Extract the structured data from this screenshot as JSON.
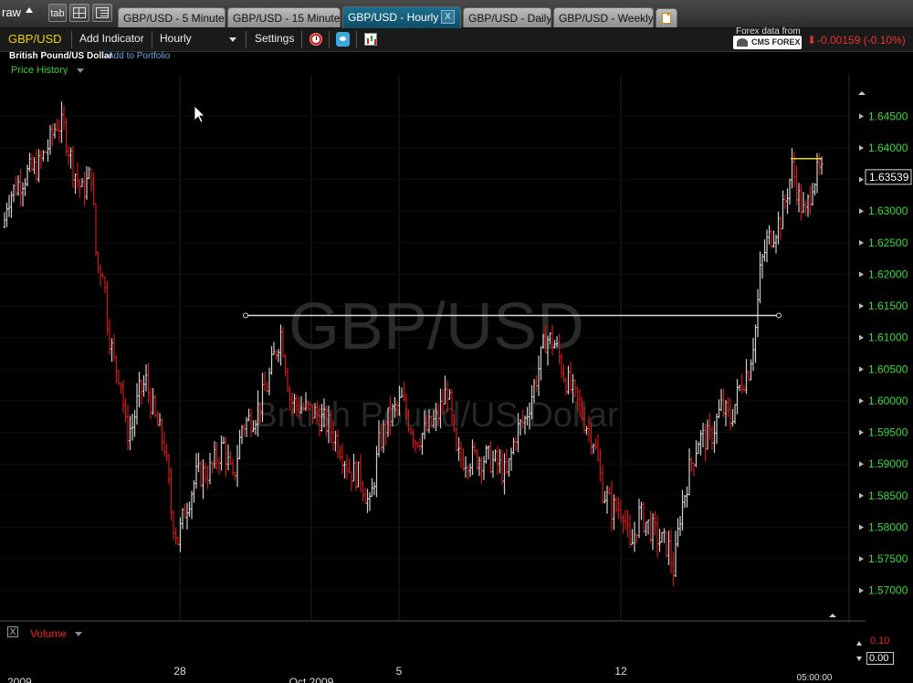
{
  "tabstrip": {
    "workspace_label": "raw",
    "tab_button_label": "tab",
    "tabs": [
      {
        "label": "GBP/USD - 5 Minute"
      },
      {
        "label": "GBP/USD - 15 Minute"
      },
      {
        "label": "GBP/USD - Hourly",
        "active": true
      },
      {
        "label": "GBP/USD - Daily"
      },
      {
        "label": "GBP/USD - Weekly"
      }
    ],
    "close_label": "X"
  },
  "toolbar": {
    "symbol": "GBP/USD",
    "add_indicator": "Add Indicator",
    "interval": "Hourly",
    "settings": "Settings",
    "data_source_label": "Forex data from",
    "data_source_logo": "CMS FOREX",
    "change_arrow": "⬇",
    "change": "-0.00159 (-0.10%)"
  },
  "subheader": {
    "pair_name": "British Pound/US Dollar",
    "add_to_portfolio": "Add to Portfolio",
    "panel_label": "Price History"
  },
  "chart_data": {
    "type": "ohlc",
    "watermark_symbol": "GBP/USD",
    "watermark_name": "British Pound/US Dollar",
    "ylim": [
      1.5675,
      1.6475
    ],
    "y_ticks": [
      "1.64500",
      "1.64000",
      "1.63500",
      "1.63000",
      "1.62500",
      "1.62000",
      "1.61500",
      "1.61000",
      "1.60500",
      "1.60000",
      "1.59500",
      "1.59000",
      "1.58500",
      "1.58000",
      "1.57500",
      "1.57000"
    ],
    "current_price": "1.63539",
    "x_ticks": [
      "2009",
      "28",
      "Oct 2009",
      "5",
      "12",
      "05:00:00"
    ],
    "trendline": {
      "price": 1.6135
    },
    "resistance_line": {
      "price": 1.6383
    },
    "colors": {
      "up": "#cfcfcf",
      "down": "#d01818",
      "grid": "#1f1f1f",
      "axis_text": "#33dd33",
      "trendline": "#d8d8d8",
      "resistance": "#e8e000"
    },
    "path_anchors": [
      [
        0,
        1.623
      ],
      [
        8,
        1.632
      ],
      [
        18,
        1.634
      ],
      [
        30,
        1.636
      ],
      [
        42,
        1.637
      ],
      [
        55,
        1.641
      ],
      [
        62,
        1.644
      ],
      [
        70,
        1.643
      ],
      [
        80,
        1.637
      ],
      [
        90,
        1.633
      ],
      [
        100,
        1.636
      ],
      [
        106,
        1.621
      ],
      [
        113,
        1.621
      ],
      [
        118,
        1.612
      ],
      [
        125,
        1.606
      ],
      [
        132,
        1.604
      ],
      [
        138,
        1.595
      ],
      [
        145,
        1.596
      ],
      [
        152,
        1.601
      ],
      [
        160,
        1.603
      ],
      [
        170,
        1.597
      ],
      [
        180,
        1.593
      ],
      [
        188,
        1.582
      ],
      [
        195,
        1.578
      ],
      [
        203,
        1.583
      ],
      [
        215,
        1.588
      ],
      [
        230,
        1.589
      ],
      [
        245,
        1.593
      ],
      [
        255,
        1.587
      ],
      [
        265,
        1.596
      ],
      [
        280,
        1.598
      ],
      [
        292,
        1.602
      ],
      [
        300,
        1.607
      ],
      [
        308,
        1.611
      ],
      [
        318,
        1.6
      ],
      [
        330,
        1.599
      ],
      [
        345,
        1.598
      ],
      [
        360,
        1.596
      ],
      [
        372,
        1.593
      ],
      [
        383,
        1.589
      ],
      [
        395,
        1.588
      ],
      [
        405,
        1.583
      ],
      [
        415,
        1.593
      ],
      [
        425,
        1.597
      ],
      [
        440,
        1.6
      ],
      [
        455,
        1.594
      ],
      [
        465,
        1.595
      ],
      [
        478,
        1.597
      ],
      [
        490,
        1.602
      ],
      [
        500,
        1.591
      ],
      [
        510,
        1.591
      ],
      [
        522,
        1.591
      ],
      [
        532,
        1.591
      ],
      [
        545,
        1.59
      ],
      [
        555,
        1.588
      ],
      [
        565,
        1.595
      ],
      [
        575,
        1.597
      ],
      [
        588,
        1.604
      ],
      [
        598,
        1.61
      ],
      [
        608,
        1.609
      ],
      [
        618,
        1.604
      ],
      [
        628,
        1.601
      ],
      [
        640,
        1.597
      ],
      [
        650,
        1.594
      ],
      [
        660,
        1.586
      ],
      [
        670,
        1.583
      ],
      [
        683,
        1.583
      ],
      [
        690,
        1.576
      ],
      [
        700,
        1.582
      ],
      [
        712,
        1.58
      ],
      [
        722,
        1.578
      ],
      [
        732,
        1.577
      ],
      [
        738,
        1.573
      ],
      [
        745,
        1.582
      ],
      [
        755,
        1.589
      ],
      [
        765,
        1.594
      ],
      [
        778,
        1.594
      ],
      [
        790,
        1.599
      ],
      [
        800,
        1.597
      ],
      [
        812,
        1.603
      ],
      [
        820,
        1.605
      ],
      [
        828,
        1.612
      ],
      [
        833,
        1.621
      ],
      [
        840,
        1.625
      ],
      [
        848,
        1.627
      ],
      [
        856,
        1.629
      ],
      [
        862,
        1.633
      ],
      [
        868,
        1.637
      ],
      [
        875,
        1.632
      ],
      [
        882,
        1.629
      ],
      [
        890,
        1.635
      ],
      [
        897,
        1.636
      ],
      [
        902,
        1.6354
      ]
    ]
  },
  "volume_panel": {
    "toggle_label": "X",
    "label": "Volume",
    "max_value": "0.10",
    "min_value": "0.00"
  }
}
